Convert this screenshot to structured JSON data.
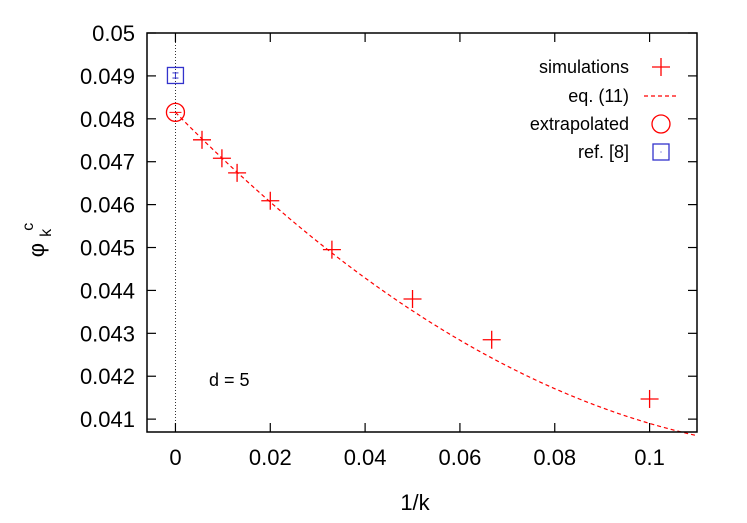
{
  "chart_data": {
    "type": "scatter",
    "xlabel": "1/k",
    "ylabel": {
      "base": "φ",
      "sub": "k",
      "sup": "c"
    },
    "xlim": [
      -0.006,
      0.11
    ],
    "ylim": [
      0.0407,
      0.05
    ],
    "x_ticks": [
      0,
      0.02,
      0.04,
      0.06,
      0.08,
      0.1
    ],
    "x_tick_labels": [
      "0",
      "0.02",
      "0.04",
      "0.06",
      "0.08",
      "0.1"
    ],
    "y_ticks": [
      0.041,
      0.042,
      0.043,
      0.044,
      0.045,
      0.046,
      0.047,
      0.048,
      0.049,
      0.05
    ],
    "y_tick_labels": [
      "0.041",
      "0.042",
      "0.043",
      "0.044",
      "0.045",
      "0.046",
      "0.047",
      "0.048",
      "0.049",
      "0.05"
    ],
    "grid": false,
    "legend_position": "top-right",
    "annotation": "d = 5",
    "colors": {
      "simulations": "#ff0000",
      "fit": "#ff0000",
      "extrapolated": "#ff0000",
      "reference": "#3333cc"
    },
    "series": [
      {
        "name": "simulations",
        "kind": "plus",
        "points": [
          {
            "x": 0.0056,
            "y": 0.04751
          },
          {
            "x": 0.0098,
            "y": 0.04708
          },
          {
            "x": 0.013,
            "y": 0.04674
          },
          {
            "x": 0.02,
            "y": 0.04609
          },
          {
            "x": 0.033,
            "y": 0.04495
          },
          {
            "x": 0.05,
            "y": 0.0438
          },
          {
            "x": 0.0667,
            "y": 0.04285
          },
          {
            "x": 0.1,
            "y": 0.04147
          }
        ]
      },
      {
        "name": "eq. (11)",
        "kind": "dashed-line",
        "curve": {
          "a": 0.04815,
          "b": -0.1125,
          "c": 0.4
        },
        "x_range": [
          0,
          0.11
        ]
      },
      {
        "name": "extrapolated",
        "kind": "circle",
        "points": [
          {
            "x": 0,
            "y": 0.04815
          }
        ]
      },
      {
        "name": "ref. [8]",
        "kind": "square-errorbar",
        "points": [
          {
            "x": 0,
            "y": 0.04901,
            "err": 6e-05
          }
        ]
      }
    ]
  }
}
